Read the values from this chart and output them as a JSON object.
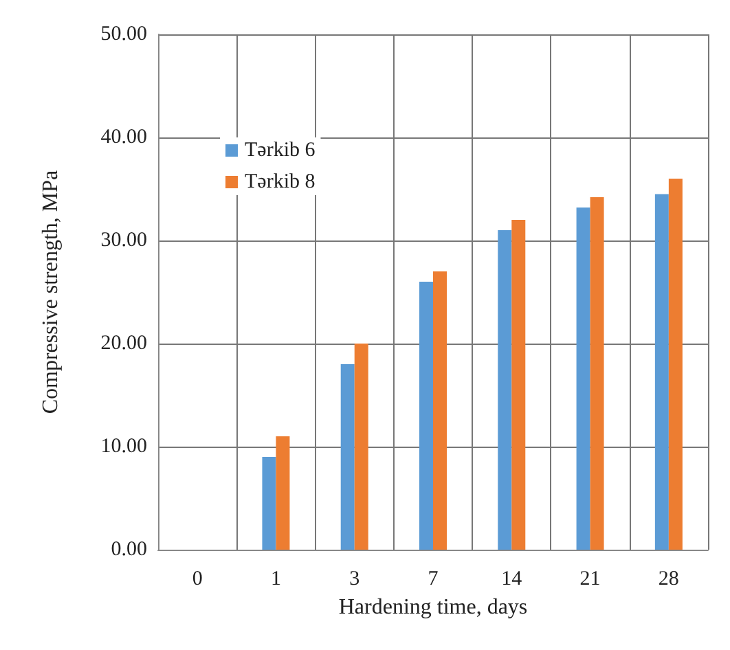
{
  "chart_data": {
    "type": "bar",
    "xlabel": "Hardening time, days",
    "ylabel": "Compressive strength, MPa",
    "categories": [
      "0",
      "1",
      "3",
      "7",
      "14",
      "21",
      "28"
    ],
    "series": [
      {
        "name": "Tərkib 6",
        "color": "#5b9bd5",
        "values": [
          0,
          9.0,
          18.0,
          26.0,
          31.0,
          33.2,
          34.5
        ]
      },
      {
        "name": "Tərkib 8",
        "color": "#ed7d31",
        "values": [
          0,
          11.0,
          20.0,
          27.0,
          32.0,
          34.2,
          36.0
        ]
      }
    ],
    "ylim": [
      0,
      50
    ],
    "yticks": [
      {
        "value": 0,
        "label": "0.00"
      },
      {
        "value": 10,
        "label": "10.00"
      },
      {
        "value": 20,
        "label": "20.00"
      },
      {
        "value": 30,
        "label": "30.00"
      },
      {
        "value": 40,
        "label": "40.00"
      },
      {
        "value": 50,
        "label": "50.00"
      }
    ],
    "grid": true,
    "legend": "top left"
  }
}
